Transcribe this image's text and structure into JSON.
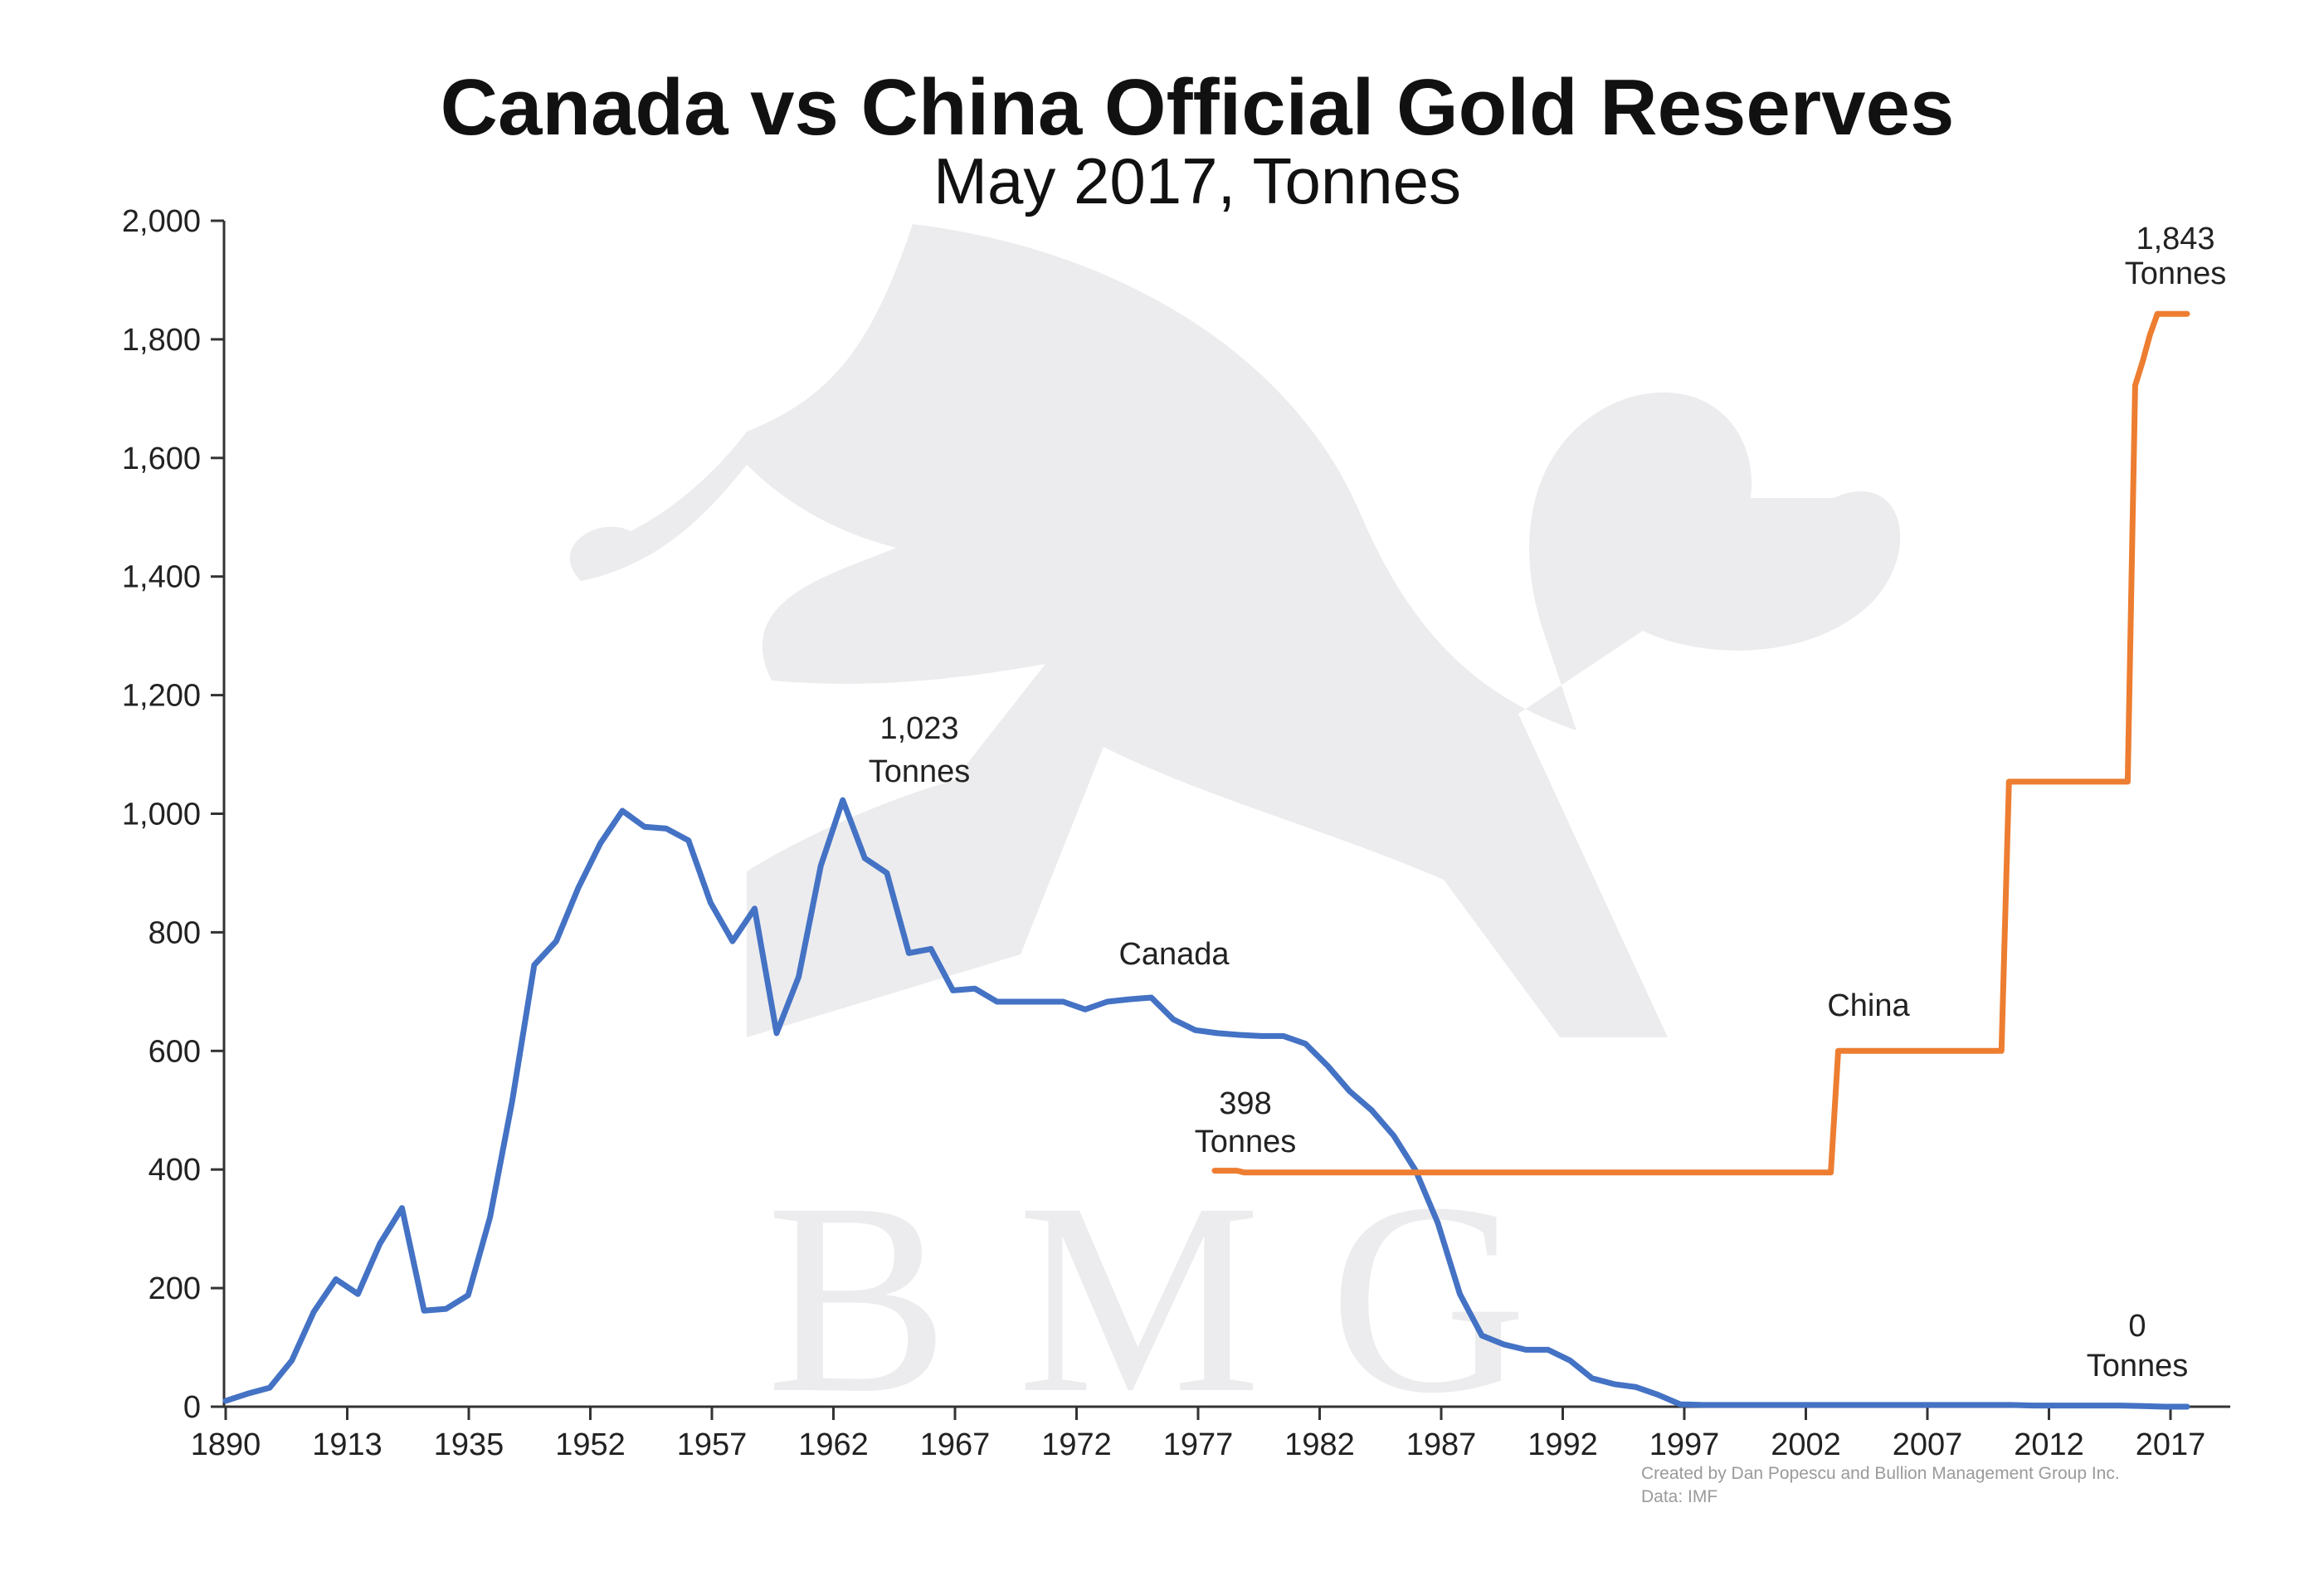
{
  "chart_data": {
    "type": "line",
    "title": "Canada vs China Official Gold Reserves",
    "subtitle": "May 2017, Tonnes",
    "xlabel": "",
    "ylabel": "",
    "ylim": [
      0,
      2000
    ],
    "y_ticks": [
      "2,000",
      "1,800",
      "1,600",
      "1,400",
      "1,200",
      "1,000",
      "800",
      "600",
      "400",
      "200",
      "0"
    ],
    "x_ticks": [
      "1890",
      "1913",
      "1935",
      "1952",
      "1957",
      "1962",
      "1967",
      "1972",
      "1977",
      "1982",
      "1987",
      "1992",
      "1997",
      "2002",
      "2007",
      "2012",
      "2017"
    ],
    "grid": false,
    "legend": "none (series labelled inline)",
    "watermark": "B M G",
    "series": [
      {
        "name": "Canada",
        "color": "#4472c4",
        "values": [
          10,
          22,
          32,
          78,
          160,
          215,
          190,
          275,
          335,
          162,
          165,
          188,
          320,
          515,
          745,
          785,
          875,
          950,
          1005,
          978,
          975,
          955,
          850,
          785,
          840,
          630,
          725,
          912,
          1023,
          925,
          900,
          765,
          772,
          702,
          705,
          683,
          683,
          683,
          683,
          670,
          683,
          687,
          690,
          653,
          635,
          630,
          627,
          625,
          625,
          612,
          575,
          532,
          500,
          457,
          398,
          310,
          190,
          120,
          105,
          96,
          96,
          78,
          48,
          38,
          33,
          20,
          4,
          3,
          3,
          3,
          3,
          3,
          3,
          3,
          3,
          3,
          3,
          3,
          3,
          3,
          3,
          3,
          2,
          2,
          2,
          2,
          2,
          1,
          0,
          0
        ]
      },
      {
        "name": "China",
        "color": "#ed7d31",
        "values": [
          398,
          398,
          398,
          398,
          395,
          395,
          395,
          395,
          395,
          395,
          395,
          395,
          395,
          395,
          395,
          395,
          395,
          395,
          395,
          395,
          395,
          395,
          395,
          395,
          395,
          395,
          395,
          395,
          395,
          395,
          395,
          395,
          395,
          395,
          395,
          395,
          395,
          395,
          395,
          395,
          395,
          395,
          395,
          395,
          395,
          395,
          395,
          395,
          395,
          395,
          395,
          395,
          395,
          395,
          395,
          395,
          395,
          395,
          395,
          395,
          395,
          395,
          395,
          395,
          395,
          395,
          395,
          395,
          395,
          395,
          395,
          395,
          395,
          395,
          395,
          395,
          395,
          395,
          395,
          395,
          395,
          395,
          395,
          395,
          600,
          600,
          600,
          600,
          600,
          600,
          600,
          600,
          600,
          600,
          600,
          600,
          600,
          600,
          600,
          600,
          600,
          600,
          600,
          600,
          600,
          600,
          600,
          1054,
          1054,
          1054,
          1054,
          1054,
          1054,
          1054,
          1054,
          1054,
          1054,
          1054,
          1054,
          1054,
          1054,
          1054,
          1054,
          1054,
          1722,
          1762,
          1808,
          1843,
          1843,
          1843,
          1843,
          1843
        ]
      }
    ],
    "annotations": {
      "canada_peak": [
        "1,023",
        "Tonnes"
      ],
      "canada_label": "Canada",
      "canada_end": [
        "0",
        "Tonnes"
      ],
      "china_start": [
        "398",
        "Tonnes"
      ],
      "china_label": "China",
      "china_end": [
        "1,843",
        "Tonnes"
      ]
    },
    "credit": [
      "Created by Dan Popescu and Bullion Management Group Inc.",
      "Data: IMF"
    ]
  }
}
